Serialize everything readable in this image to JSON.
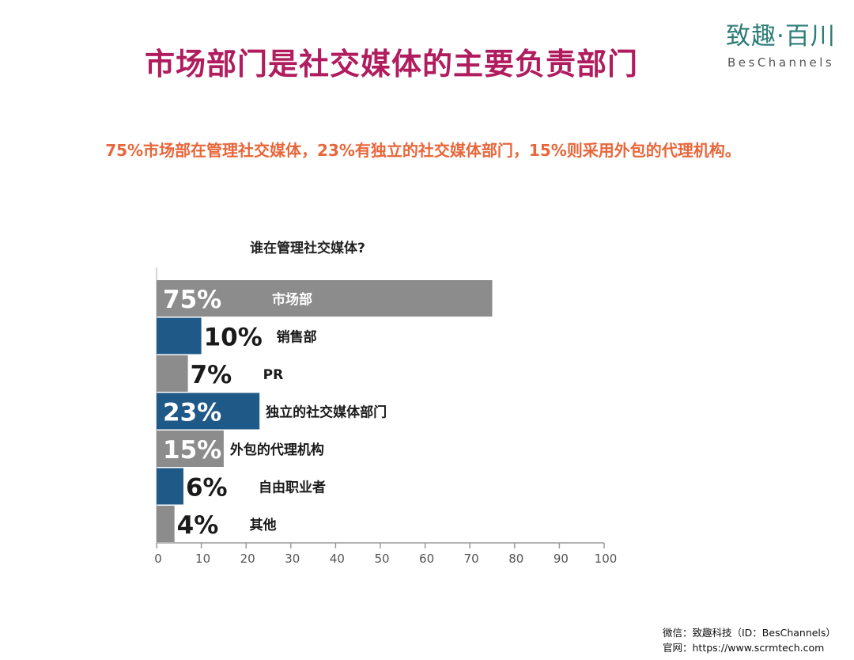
{
  "title": "市场部门是社交媒体的主要负责部门",
  "logo": {
    "cn": "致趣·百川",
    "en": "BesChannels"
  },
  "subtitle": "75%市场部在管理社交媒体，23%有独立的社交媒体部门，15%则采用外包的代理机构。",
  "footer": {
    "wechat": "微信：致趣科技（ID：BesChannels）",
    "website": "官网：https://www.scrmtech.com"
  },
  "colors": {
    "title": "#b01c5d",
    "subtitle": "#e8663a",
    "bar_gray": "#8c8c8c",
    "bar_blue": "#1f5987",
    "logo": "#2e7d78"
  },
  "chart_data": {
    "type": "bar",
    "orientation": "horizontal",
    "title": "谁在管理社交媒体?",
    "categories": [
      "市场部",
      "销售部",
      "PR",
      "独立的社交媒体部门",
      "外包的代理机构",
      "自由职业者",
      "其他"
    ],
    "values": [
      75,
      10,
      7,
      23,
      15,
      6,
      4
    ],
    "value_labels": [
      "75%",
      "10%",
      "7%",
      "23%",
      "15%",
      "6%",
      "4%"
    ],
    "bar_colors": [
      "#8c8c8c",
      "#1f5987",
      "#8c8c8c",
      "#1f5987",
      "#8c8c8c",
      "#1f5987",
      "#8c8c8c"
    ],
    "xlim": [
      0,
      100
    ],
    "xticks": [
      0,
      10,
      20,
      30,
      40,
      50,
      60,
      70,
      80,
      90,
      100
    ],
    "grid": false,
    "legend": "none"
  }
}
